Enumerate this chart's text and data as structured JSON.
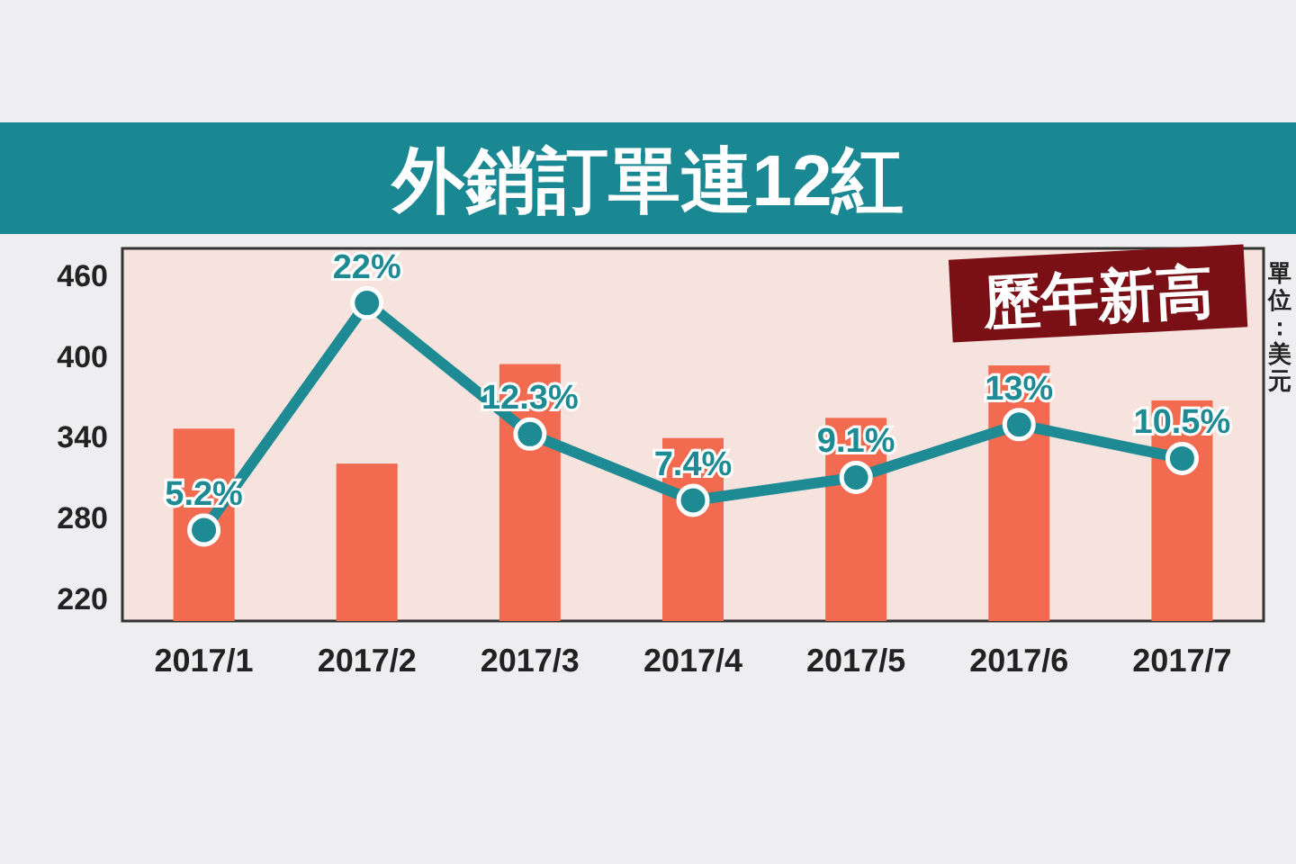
{
  "chart_data": {
    "type": "bar",
    "title": "外銷訂單連12紅",
    "categories": [
      "2017/1",
      "2017/2",
      "2017/3",
      "2017/4",
      "2017/5",
      "2017/6",
      "2017/7"
    ],
    "series": [
      {
        "color": "#f26b50",
        "values": [
          346,
          320,
          394,
          339,
          354,
          393,
          367
        ]
      },
      {
        "type": "line",
        "axis": "y2",
        "color": "#1e8a93",
        "values": [
          5.2,
          22,
          12.3,
          7.4,
          9.1,
          13,
          10.5
        ],
        "value_labels": [
          "5.2%",
          "22%",
          "12.3%",
          "7.4%",
          "9.1%",
          "13%",
          "10.5%"
        ]
      }
    ],
    "ylim": [
      203,
      480
    ],
    "yticks": [
      220,
      280,
      340,
      400,
      460
    ],
    "marker": "circle",
    "grid": false,
    "annotations": [
      "歷年新高",
      "單位：美元"
    ]
  }
}
